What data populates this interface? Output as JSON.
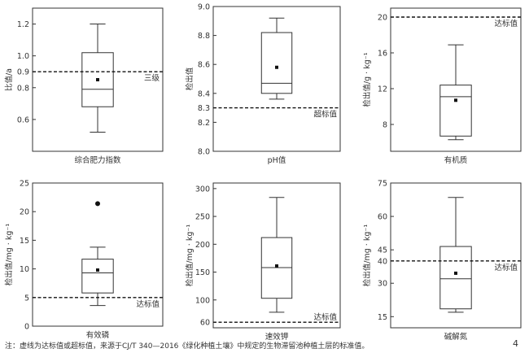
{
  "footnote": "注：虚线为达标值或超标值，来源于CJ/T 340—2016《绿化种植土壤》中规定的生物滞留池种植土层的标准值。",
  "page_number": "4",
  "chart_data": [
    {
      "type": "box",
      "xlabel": "综合肥力指数",
      "ylabel": "比值/a",
      "ylim": [
        0.4,
        1.3
      ],
      "yticks": [
        0.6,
        0.8,
        0.9,
        1.0,
        1.2
      ],
      "ytick_labels": [
        "0.6",
        "0.8",
        "0.9",
        "1.0",
        "1.2"
      ],
      "box": {
        "min": 0.52,
        "q1": 0.68,
        "median": 0.79,
        "q3": 1.02,
        "max": 1.2,
        "mean": 0.85,
        "outliers": []
      },
      "threshold": {
        "value": 0.9,
        "label": "三级"
      }
    },
    {
      "type": "box",
      "xlabel": "pH值",
      "ylabel": "检出值",
      "ylim": [
        8.0,
        9.0
      ],
      "yticks": [
        8.0,
        8.2,
        8.3,
        8.4,
        8.6,
        8.8,
        9.0
      ],
      "ytick_labels": [
        "8.0",
        "8.2",
        "8.3",
        "8.4",
        "8.6",
        "8.8",
        "9.0"
      ],
      "box": {
        "min": 8.36,
        "q1": 8.4,
        "median": 8.47,
        "q3": 8.82,
        "max": 8.92,
        "mean": 8.58,
        "outliers": []
      },
      "threshold": {
        "value": 8.3,
        "label": "超标值"
      }
    },
    {
      "type": "box",
      "xlabel": "有机质",
      "ylabel": "检出值/g · kg⁻¹",
      "ylim": [
        5,
        21
      ],
      "yticks": [
        8,
        12,
        16,
        20
      ],
      "ytick_labels": [
        "8",
        "12",
        "16",
        "20"
      ],
      "box": {
        "min": 6.3,
        "q1": 6.7,
        "median": 11.1,
        "q3": 12.4,
        "max": 16.9,
        "mean": 10.7,
        "outliers": []
      },
      "threshold": {
        "value": 20,
        "label": "达标值"
      }
    },
    {
      "type": "box",
      "xlabel": "有效磷",
      "ylabel": "检出值/mg · kg⁻¹",
      "ylim": [
        0,
        25
      ],
      "yticks": [
        0,
        5,
        10,
        15,
        20,
        25
      ],
      "ytick_labels": [
        "0",
        "5",
        "10",
        "15",
        "20",
        "25"
      ],
      "box": {
        "min": 3.6,
        "q1": 5.8,
        "median": 9.3,
        "q3": 11.7,
        "max": 13.8,
        "mean": 9.8,
        "outliers": [
          21.4
        ]
      },
      "threshold": {
        "value": 5,
        "label": "达标值"
      }
    },
    {
      "type": "box",
      "xlabel": "速效钾",
      "ylabel": "检出值/mg · kg⁻¹",
      "ylim": [
        50,
        310
      ],
      "yticks": [
        60,
        100,
        150,
        200,
        250,
        300
      ],
      "ytick_labels": [
        "60",
        "100",
        "150",
        "200",
        "250",
        "300"
      ],
      "box": {
        "min": 78,
        "q1": 103,
        "median": 158,
        "q3": 212,
        "max": 284,
        "mean": 161,
        "outliers": []
      },
      "threshold": {
        "value": 60,
        "label": "达标值"
      }
    },
    {
      "type": "box",
      "xlabel": "碱解氮",
      "ylabel": "检出值/mg · kg⁻¹",
      "ylim": [
        10,
        75
      ],
      "yticks": [
        15,
        30,
        40,
        45,
        60,
        75
      ],
      "ytick_labels": [
        "15",
        "30",
        "40",
        "45",
        "60",
        "75"
      ],
      "box": {
        "min": 17,
        "q1": 18.5,
        "median": 32,
        "q3": 46.5,
        "max": 68.5,
        "mean": 34.5,
        "outliers": []
      },
      "threshold": {
        "value": 40,
        "label": "达标值"
      }
    }
  ]
}
